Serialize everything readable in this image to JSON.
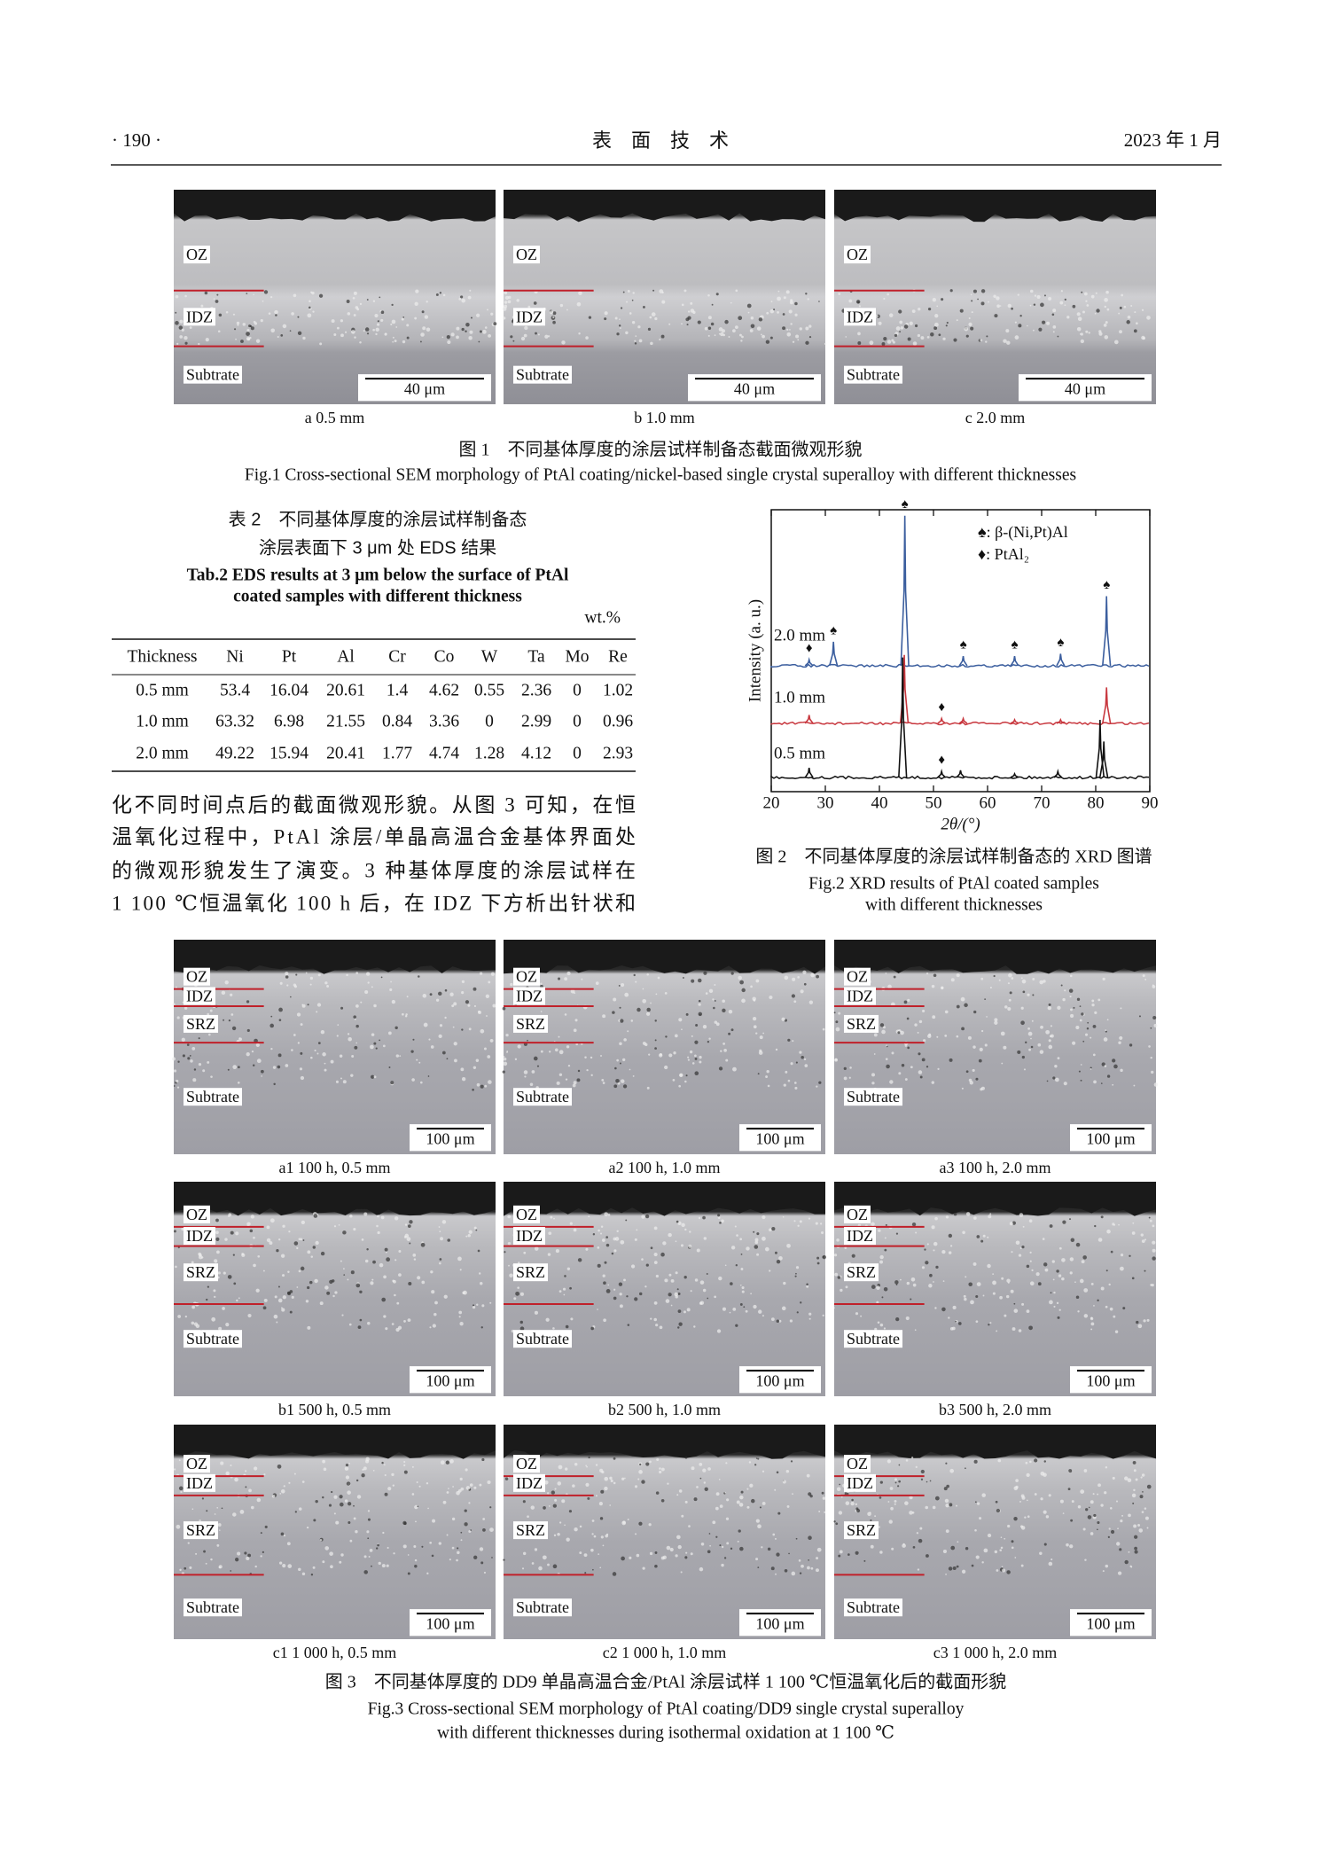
{
  "header": {
    "page": "· 190 ·",
    "journal": "表　面　技　术",
    "issue": "2023 年 1 月"
  },
  "figure1": {
    "panels": [
      {
        "caption": "a  0.5 mm",
        "zones": [
          "OZ",
          "IDZ",
          "Subtrate"
        ],
        "scale_bar": "40 μm"
      },
      {
        "caption": "b  1.0 mm",
        "zones": [
          "OZ",
          "IDZ",
          "Subtrate"
        ],
        "scale_bar": "40 μm"
      },
      {
        "caption": "c  2.0 mm",
        "zones": [
          "OZ",
          "IDZ",
          "Subtrate"
        ],
        "scale_bar": "40 μm"
      }
    ],
    "caption_cn": "图 1　不同基体厚度的涂层试样制备态截面微观形貌",
    "caption_en": "Fig.1 Cross-sectional SEM morphology of PtAl coating/nickel-based single crystal superalloy with different thicknesses"
  },
  "table2": {
    "title_cn": [
      "表 2　不同基体厚度的涂层试样制备态",
      "涂层表面下 3 μm 处 EDS 结果"
    ],
    "title_en": [
      "Tab.2 EDS results at 3 μm below the surface of PtAl",
      "coated samples with different thickness"
    ],
    "unit": "wt.%",
    "columns": [
      "Thickness",
      "Ni",
      "Pt",
      "Al",
      "Cr",
      "Co",
      "W",
      "Ta",
      "Mo",
      "Re"
    ],
    "rows": [
      [
        "0.5 mm",
        "53.4",
        "16.04",
        "20.61",
        "1.4",
        "4.62",
        "0.55",
        "2.36",
        "0",
        "1.02"
      ],
      [
        "1.0 mm",
        "63.32",
        "6.98",
        "21.55",
        "0.84",
        "3.36",
        "0",
        "2.99",
        "0",
        "0.96"
      ],
      [
        "2.0 mm",
        "49.22",
        "15.94",
        "20.41",
        "1.77",
        "4.74",
        "1.28",
        "4.12",
        "0",
        "2.93"
      ]
    ]
  },
  "body_text": [
    "化不同时间点后的截面微观形貌。从图 3 可知，在恒",
    "温氧化过程中，PtAl 涂层/单晶高温合金基体界面处",
    "的微观形貌发生了演变。3 种基体厚度的涂层试样在",
    "1 100 ℃恒温氧化 100 h 后，在 IDZ 下方析出针状和"
  ],
  "figure2": {
    "chart": {
      "type": "line",
      "xlabel": "2θ/(°)",
      "ylabel": "Intensity (a. u.)",
      "xlim": [
        20,
        90
      ],
      "xticks": [
        20,
        30,
        40,
        50,
        60,
        70,
        80,
        90
      ],
      "legend": [
        "♠: β-(Ni,Pt)Al",
        "♦: PtAl₂"
      ],
      "series": [
        {
          "name": "2.0 mm",
          "color": "#3b5e9e",
          "peaks_x": [
            27,
            31.5,
            44.7,
            55.5,
            65,
            73.5,
            82
          ],
          "peaks_height": [
            5,
            20,
            125,
            8,
            8,
            10,
            58
          ],
          "markers": [
            {
              "x": 27,
              "symbol": "♦"
            },
            {
              "x": 31.5,
              "symbol": "♠"
            },
            {
              "x": 44.7,
              "symbol": "♠"
            },
            {
              "x": 55.5,
              "symbol": "♠"
            },
            {
              "x": 65,
              "symbol": "♠"
            },
            {
              "x": 73.5,
              "symbol": "♠"
            },
            {
              "x": 82,
              "symbol": "♠"
            }
          ]
        },
        {
          "name": "1.0 mm",
          "color": "#c8383f",
          "peaks_x": [
            27,
            44.6,
            51.5,
            55.5,
            65,
            73.5,
            82
          ],
          "peaks_height": [
            7,
            57,
            4,
            4,
            3,
            3,
            30
          ],
          "markers": [
            {
              "x": 51.5,
              "symbol": "♦"
            }
          ]
        },
        {
          "name": "0.5 mm",
          "color": "#111111",
          "peaks_x": [
            27,
            44.3,
            51.5,
            55,
            65,
            73,
            80.8,
            81.5
          ],
          "peaks_height": [
            8,
            100,
            5,
            6,
            3,
            5,
            48,
            30
          ],
          "markers": [
            {
              "x": 51.5,
              "symbol": "♦"
            }
          ]
        }
      ]
    },
    "caption_cn": "图 2　不同基体厚度的涂层试样制备态的 XRD 图谱",
    "caption_en": [
      "Fig.2 XRD results of PtAl coated samples",
      "with different thicknesses"
    ]
  },
  "figure3": {
    "panels": [
      {
        "caption": "a1  100 h, 0.5 mm",
        "zones": [
          "OZ",
          "IDZ",
          "SRZ",
          "Subtrate"
        ],
        "scale_bar": "100 μm"
      },
      {
        "caption": "a2  100 h, 1.0 mm",
        "zones": [
          "OZ",
          "IDZ",
          "SRZ",
          "Subtrate"
        ],
        "scale_bar": "100 μm"
      },
      {
        "caption": "a3  100 h, 2.0 mm",
        "zones": [
          "OZ",
          "IDZ",
          "SRZ",
          "Subtrate"
        ],
        "scale_bar": "100 μm"
      },
      {
        "caption": "b1  500 h, 0.5 mm",
        "zones": [
          "OZ",
          "IDZ",
          "SRZ",
          "Subtrate"
        ],
        "scale_bar": "100 μm"
      },
      {
        "caption": "b2  500 h, 1.0 mm",
        "zones": [
          "OZ",
          "IDZ",
          "SRZ",
          "Subtrate"
        ],
        "scale_bar": "100 μm"
      },
      {
        "caption": "b3  500 h, 2.0 mm",
        "zones": [
          "OZ",
          "IDZ",
          "SRZ",
          "Subtrate"
        ],
        "scale_bar": "100 μm"
      },
      {
        "caption": "c1  1 000 h, 0.5 mm",
        "zones": [
          "OZ",
          "IDZ",
          "SRZ",
          "Subtrate"
        ],
        "scale_bar": "100 μm"
      },
      {
        "caption": "c2  1 000 h, 1.0 mm",
        "zones": [
          "OZ",
          "IDZ",
          "SRZ",
          "Subtrate"
        ],
        "scale_bar": "100 μm"
      },
      {
        "caption": "c3  1 000 h, 2.0 mm",
        "zones": [
          "OZ",
          "IDZ",
          "SRZ",
          "Subtrate"
        ],
        "scale_bar": "100 μm"
      }
    ],
    "caption_cn": "图 3　不同基体厚度的 DD9 单晶高温合金/PtAl 涂层试样 1 100 ℃恒温氧化后的截面形貌",
    "caption_en": [
      "Fig.3 Cross-sectional SEM morphology of PtAl coating/DD9 single crystal superalloy",
      "with different thicknesses during isothermal oxidation at 1 100 ℃"
    ]
  }
}
